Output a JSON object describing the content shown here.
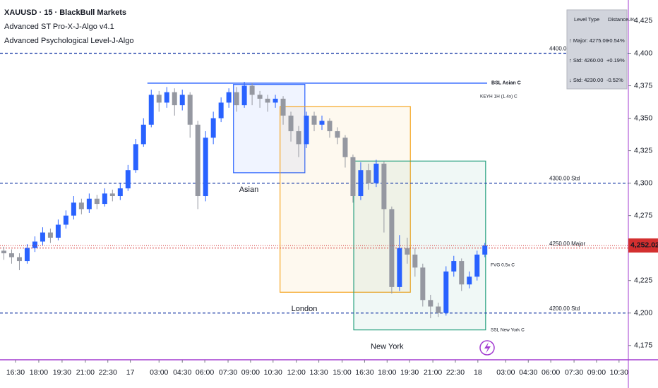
{
  "chart_data": {
    "type": "candlestick",
    "title": "XAUUSD · 15 · BlackBull Markets",
    "indicators": [
      "Advanced ST Pro-X-J-Algo v4.1",
      "Advanced Psychological Level-J-Algo"
    ],
    "x": [
      0,
      1,
      2,
      3,
      4,
      5,
      6,
      7,
      8,
      9,
      10,
      11,
      12,
      13,
      14,
      15,
      16,
      17,
      18,
      19,
      20,
      21,
      22,
      23,
      24,
      25,
      26,
      27,
      28,
      29,
      30,
      31,
      32,
      33,
      34,
      35,
      36,
      37,
      38,
      39,
      40,
      41,
      42,
      43,
      44,
      45,
      46,
      47,
      48,
      49,
      50,
      51,
      52,
      53,
      54,
      55,
      56,
      57,
      58,
      59,
      60,
      61,
      62
    ],
    "open": [
      4248,
      4246,
      4243,
      4240,
      4250,
      4255,
      4262,
      4258,
      4268,
      4275,
      4285,
      4280,
      4288,
      4284,
      4292,
      4290,
      4296,
      4310,
      4330,
      4345,
      4368,
      4362,
      4370,
      4360,
      4368,
      4345,
      4290,
      4335,
      4350,
      4362,
      4370,
      4360,
      4375,
      4368,
      4365,
      4362,
      4365,
      4352,
      4340,
      4330,
      4352,
      4345,
      4348,
      4340,
      4335,
      4320,
      4290,
      4310,
      4300,
      4315,
      4280,
      4220,
      4250,
      4245,
      4235,
      4210,
      4205,
      4200,
      4232,
      4240,
      4222,
      4228,
      4245
    ],
    "high": [
      4251,
      4249,
      4246,
      4253,
      4259,
      4266,
      4265,
      4272,
      4279,
      4290,
      4288,
      4292,
      4291,
      4296,
      4295,
      4300,
      4314,
      4334,
      4350,
      4372,
      4371,
      4374,
      4373,
      4372,
      4370,
      4348,
      4340,
      4355,
      4366,
      4373,
      4374,
      4378,
      4377,
      4371,
      4368,
      4368,
      4367,
      4355,
      4344,
      4355,
      4355,
      4352,
      4350,
      4343,
      4337,
      4322,
      4316,
      4315,
      4318,
      4317,
      4282,
      4260,
      4258,
      4250,
      4238,
      4214,
      4208,
      4236,
      4244,
      4242,
      4232,
      4248,
      4254
    ],
    "low": [
      4241,
      4238,
      4233,
      4238,
      4247,
      4252,
      4254,
      4256,
      4265,
      4272,
      4276,
      4277,
      4280,
      4282,
      4286,
      4287,
      4294,
      4308,
      4328,
      4343,
      4355,
      4358,
      4352,
      4356,
      4335,
      4280,
      4286,
      4330,
      4347,
      4358,
      4355,
      4358,
      4360,
      4358,
      4355,
      4358,
      4345,
      4332,
      4320,
      4327,
      4340,
      4341,
      4335,
      4330,
      4312,
      4285,
      4287,
      4295,
      4297,
      4262,
      4215,
      4217,
      4238,
      4228,
      4205,
      4196,
      4197,
      4198,
      4228,
      4217,
      4219,
      4225,
      4243
    ],
    "close": [
      4246,
      4243,
      4240,
      4250,
      4255,
      4262,
      4258,
      4268,
      4275,
      4285,
      4280,
      4288,
      4284,
      4292,
      4290,
      4296,
      4310,
      4330,
      4345,
      4368,
      4362,
      4370,
      4360,
      4368,
      4345,
      4290,
      4335,
      4350,
      4362,
      4370,
      4360,
      4375,
      4368,
      4365,
      4362,
      4365,
      4352,
      4340,
      4330,
      4352,
      4345,
      4348,
      4340,
      4335,
      4320,
      4290,
      4310,
      4300,
      4315,
      4280,
      4220,
      4250,
      4245,
      4235,
      4210,
      4205,
      4200,
      4232,
      4240,
      4222,
      4228,
      4245,
      4252
    ],
    "up_color": "#2962ff",
    "down_color": "#9598a1",
    "xlim": [
      -0.5,
      80.5
    ],
    "xticks": [
      {
        "value": 1.5,
        "label": "16:30"
      },
      {
        "value": 4.5,
        "label": "18:00"
      },
      {
        "value": 7.5,
        "label": "19:30"
      },
      {
        "value": 10.5,
        "label": "21:00"
      },
      {
        "value": 13.4,
        "label": "22:30"
      },
      {
        "value": 16.3,
        "label": "17"
      },
      {
        "value": 20,
        "label": "03:00"
      },
      {
        "value": 23,
        "label": "04:30"
      },
      {
        "value": 25.9,
        "label": "06:00"
      },
      {
        "value": 28.9,
        "label": "07:30"
      },
      {
        "value": 31.8,
        "label": "09:00"
      },
      {
        "value": 34.7,
        "label": "10:30"
      },
      {
        "value": 37.7,
        "label": "12:00"
      },
      {
        "value": 40.6,
        "label": "13:30"
      },
      {
        "value": 43.6,
        "label": "15:00"
      },
      {
        "value": 46.5,
        "label": "16:30"
      },
      {
        "value": 49.4,
        "label": "18:00"
      },
      {
        "value": 52.3,
        "label": "19:30"
      },
      {
        "value": 55.3,
        "label": "21:00"
      },
      {
        "value": 58.2,
        "label": "22:30"
      },
      {
        "value": 61.1,
        "label": "18"
      },
      {
        "value": 64.7,
        "label": "03:00"
      },
      {
        "value": 67.6,
        "label": "04:30"
      },
      {
        "value": 70.5,
        "label": "06:00"
      },
      {
        "value": 73.5,
        "label": "07:30"
      },
      {
        "value": 76.4,
        "label": "09:00"
      },
      {
        "value": 79.3,
        "label": "10:30"
      }
    ],
    "ylim": [
      4164,
      4441
    ],
    "yticks": [
      {
        "value": 4175,
        "label": "4,175"
      },
      {
        "value": 4200,
        "label": "4,200"
      },
      {
        "value": 4225,
        "label": "4,225"
      },
      {
        "value": 4250,
        "label": "4,250"
      },
      {
        "value": 4275,
        "label": "4,275"
      },
      {
        "value": 4300,
        "label": "4,300"
      },
      {
        "value": 4325,
        "label": "4,325"
      },
      {
        "value": 4350,
        "label": "4,350"
      },
      {
        "value": 4375,
        "label": "4,375"
      },
      {
        "value": 4400,
        "label": "4,400"
      },
      {
        "value": 4425,
        "label": "4,425"
      }
    ],
    "last_price": {
      "value": 4252.02,
      "label": "4,252.02"
    },
    "levels": [
      {
        "value": 4400,
        "label": "4400.00 Std",
        "color": "#1e3fa8"
      },
      {
        "value": 4300,
        "label": "4300.00 Std",
        "color": "#1e3fa8"
      },
      {
        "value": 4250,
        "label": "4250.00 Major",
        "color": "#d32f2f"
      },
      {
        "value": 4200,
        "label": "4200.00 Std",
        "color": "#1e3fa8"
      }
    ],
    "zones": [
      {
        "name": "Asian",
        "x": [
          29.6,
          38.8
        ],
        "y": [
          4308,
          4376
        ],
        "color": "#2962ff"
      },
      {
        "name": "London",
        "x": [
          35.6,
          52.4
        ],
        "y": [
          4216,
          4359
        ],
        "color": "#f5a623"
      },
      {
        "name": "New York",
        "x": [
          45.1,
          62.1
        ],
        "y": [
          4187,
          4317
        ],
        "color": "#26a07f"
      }
    ],
    "liquidity": [
      {
        "name": "BSL Asian C",
        "value": 4377,
        "x": [
          18.5,
          62.3
        ],
        "color": "#2962ff"
      }
    ],
    "annotations": [
      "KEYH 1H (1.4x) C",
      "FVG 0.5x C",
      "SSL New York C"
    ],
    "table": {
      "header": [
        "Level Type",
        "Distance %"
      ],
      "rows": [
        [
          "↑ Major: 4275.00",
          "+0.54%"
        ],
        [
          "↑ Std: 4260.00",
          "+0.19%"
        ],
        [
          "↓ Std: 4230.00",
          "-0.52%"
        ]
      ]
    }
  }
}
